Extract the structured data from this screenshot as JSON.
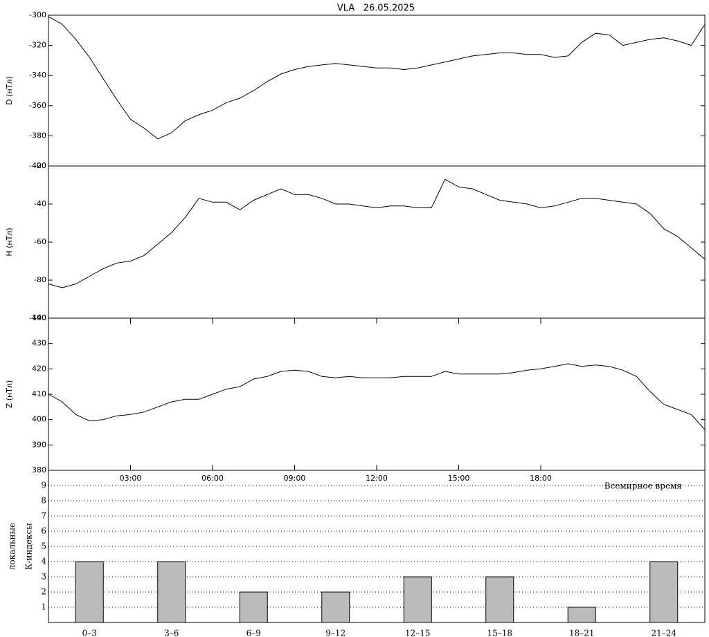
{
  "chart_data": [
    {
      "type": "line",
      "title": "VLA   26.05.2025",
      "y_label": "D (нТл)",
      "x": [
        0,
        0.5,
        1,
        1.5,
        2,
        2.5,
        3,
        3.5,
        4,
        4.5,
        5,
        5.5,
        6,
        6.5,
        7,
        7.5,
        8,
        8.5,
        9,
        9.5,
        10,
        10.5,
        11,
        11.5,
        12,
        12.5,
        13,
        13.5,
        14,
        14.5,
        15,
        15.5,
        16,
        16.5,
        17,
        17.5,
        18,
        18.5,
        19,
        19.5,
        20,
        20.5,
        21,
        21.5,
        22,
        22.5,
        23,
        23.5,
        24
      ],
      "values": [
        -301,
        -306,
        -316,
        -328,
        -342,
        -356,
        -369,
        -375,
        -382,
        -378,
        -370,
        -366,
        -363,
        -358,
        -355,
        -350,
        -344,
        -339,
        -336,
        -334,
        -333,
        -332,
        -333,
        -334,
        -335,
        -335,
        -336,
        -335,
        -333,
        -331,
        -329,
        -327,
        -326,
        -325,
        -325,
        -326,
        -326,
        -328,
        -327,
        -318,
        -312,
        -313,
        -320,
        -318,
        -316,
        -315,
        -317,
        -320,
        -306
      ],
      "color": "#000000",
      "xlim": [
        0,
        24
      ],
      "ylim": [
        -400,
        -300
      ],
      "yticks": [
        -300,
        -320,
        -340,
        -360,
        -380,
        -400
      ]
    },
    {
      "type": "line",
      "y_label": "H (нТл)",
      "x": [
        0,
        0.5,
        1,
        1.5,
        2,
        2.5,
        3,
        3.5,
        4,
        4.5,
        5,
        5.5,
        6,
        6.5,
        7,
        7.5,
        8,
        8.5,
        9,
        9.5,
        10,
        10.5,
        11,
        11.5,
        12,
        12.5,
        13,
        13.5,
        14,
        14.5,
        15,
        15.5,
        16,
        16.5,
        17,
        17.5,
        18,
        18.5,
        19,
        19.5,
        20,
        20.5,
        21,
        21.5,
        22,
        22.5,
        23,
        23.5,
        24
      ],
      "values": [
        -82,
        -84,
        -82,
        -78,
        -74,
        -71,
        -70,
        -67,
        -61,
        -55,
        -47,
        -37,
        -39,
        -39,
        -43,
        -38,
        -35,
        -32,
        -35,
        -35,
        -37,
        -40,
        -40,
        -41,
        -42,
        -41,
        -41,
        -42,
        -42,
        -27,
        -31,
        -32,
        -35,
        -38,
        -39,
        -40,
        -42,
        -41,
        -39,
        -37,
        -37,
        -38,
        -39,
        -40,
        -45,
        -53,
        -57,
        -63,
        -69
      ],
      "color": "#000000",
      "xlim": [
        0,
        24
      ],
      "ylim": [
        -100,
        -20
      ],
      "yticks": [
        -20,
        -40,
        -60,
        -80,
        -100
      ]
    },
    {
      "type": "line",
      "y_label": "Z (нТл)",
      "x_label": "Всемирное время",
      "x": [
        0,
        0.5,
        1,
        1.5,
        2,
        2.5,
        3,
        3.5,
        4,
        4.5,
        5,
        5.5,
        6,
        6.5,
        7,
        7.5,
        8,
        8.5,
        9,
        9.5,
        10,
        10.5,
        11,
        11.5,
        12,
        12.5,
        13,
        13.5,
        14,
        14.5,
        15,
        15.5,
        16,
        16.5,
        17,
        17.5,
        18,
        18.5,
        19,
        19.5,
        20,
        20.5,
        21,
        21.5,
        22,
        22.5,
        23,
        23.5,
        24
      ],
      "values": [
        410,
        407,
        402,
        399.5,
        400,
        401.5,
        402,
        403,
        405,
        407,
        408,
        408,
        410,
        412,
        413,
        416,
        417,
        419,
        419.5,
        419,
        417,
        416.5,
        417,
        416.5,
        416.5,
        416.5,
        417,
        417,
        417,
        419,
        418,
        418,
        418,
        418,
        418.5,
        419.5,
        420,
        421,
        422,
        421,
        421.5,
        421,
        419.5,
        417,
        411,
        406,
        404,
        402,
        396
      ],
      "color": "#000000",
      "xlim": [
        0,
        24
      ],
      "ylim": [
        380,
        440
      ],
      "yticks": [
        380,
        390,
        400,
        410,
        420,
        430,
        440
      ],
      "xticks": [
        {
          "value": 3,
          "label": "03:00"
        },
        {
          "value": 6,
          "label": "06:00"
        },
        {
          "value": 9,
          "label": "09:00"
        },
        {
          "value": 12,
          "label": "12:00"
        },
        {
          "value": 15,
          "label": "15:00"
        },
        {
          "value": 18,
          "label": "18:00"
        }
      ]
    },
    {
      "type": "bar",
      "y_label": [
        "локальные",
        "К-индексы"
      ],
      "categories": [
        "0–3",
        "3–6",
        "6–9",
        "9–12",
        "12–15",
        "15–18",
        "18–21",
        "21–24"
      ],
      "values": [
        4,
        4,
        2,
        2,
        3,
        3,
        1,
        4
      ],
      "color": "#bbbbbb",
      "ylim": [
        0,
        10
      ],
      "yticks": [
        1,
        2,
        3,
        4,
        5,
        6,
        7,
        8,
        9
      ],
      "grid": true
    }
  ]
}
